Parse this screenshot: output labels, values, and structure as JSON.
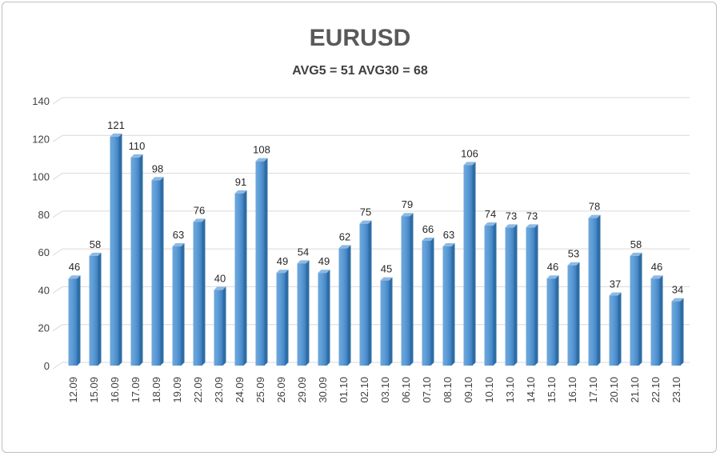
{
  "chart_data": {
    "type": "bar",
    "title": "EURUSD",
    "subtitle": "AVG5 = 51 AVG30 = 68",
    "xlabel": "",
    "ylabel": "",
    "ylim": [
      0,
      140
    ],
    "yticks": [
      0,
      20,
      40,
      60,
      80,
      100,
      120,
      140
    ],
    "grid": true,
    "legend": "none",
    "bar_color": "#5b9bd5",
    "categories": [
      "12.09",
      "15.09",
      "16.09",
      "17.09",
      "18.09",
      "19.09",
      "22.09",
      "23.09",
      "24.09",
      "25.09",
      "26.09",
      "29.09",
      "30.09",
      "01.10",
      "02.10",
      "03.10",
      "06.10",
      "07.10",
      "08.10",
      "09.10",
      "10.10",
      "13.10",
      "14.10",
      "15.10",
      "16.10",
      "17.10",
      "20.10",
      "21.10",
      "22.10",
      "23.10"
    ],
    "values": [
      46,
      58,
      121,
      110,
      98,
      63,
      76,
      40,
      91,
      108,
      49,
      54,
      49,
      62,
      75,
      45,
      79,
      66,
      63,
      106,
      74,
      73,
      73,
      46,
      53,
      78,
      37,
      58,
      46,
      34
    ]
  }
}
